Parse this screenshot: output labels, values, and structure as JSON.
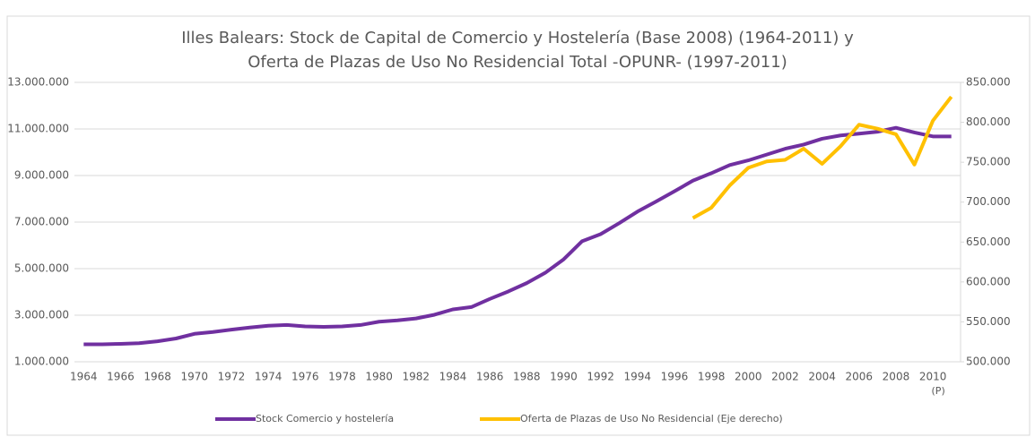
{
  "chart_data": {
    "type": "line",
    "title": [
      "Illes Balears: Stock de Capital de Comercio y Hostelería (Base 2008) (1964-2011) y",
      "Oferta de Plazas de Uso No Residencial Total -OPUNR- (1997-2011)"
    ],
    "categories": [
      "1964",
      null,
      "1966",
      null,
      "1968",
      null,
      "1970",
      null,
      "1972",
      null,
      "1974",
      null,
      "1976",
      null,
      "1978",
      null,
      "1980",
      null,
      "1982",
      null,
      "1984",
      null,
      "1986",
      null,
      "1988",
      null,
      "1990",
      null,
      "1992",
      null,
      "1994",
      null,
      "1996",
      null,
      "1998",
      null,
      "2000",
      null,
      "2002",
      null,
      "2004",
      null,
      "2006",
      null,
      "2008",
      null,
      "2010",
      null
    ],
    "category_note": "(P)",
    "series": [
      {
        "name": "Stock Comercio y hostelería",
        "color": "#7030a0",
        "values": [
          1750000,
          1750000,
          1770000,
          1800000,
          1880000,
          2000000,
          2200000,
          2280000,
          2380000,
          2470000,
          2550000,
          2580000,
          2520000,
          2500000,
          2520000,
          2580000,
          2720000,
          2780000,
          2860000,
          3020000,
          3250000,
          3350000,
          3700000,
          4020000,
          4380000,
          4820000,
          5400000,
          6180000,
          6480000,
          6950000,
          7450000,
          7880000,
          8320000,
          8780000,
          9100000,
          9450000,
          9650000,
          9900000,
          10150000,
          10330000,
          10580000,
          10720000,
          10800000,
          10880000,
          11050000,
          10850000,
          10680000,
          10680000
        ]
      },
      {
        "name": "Oferta de Plazas de Uso No Residencial (Eje derecho)",
        "color": "#ffc000",
        "axis": "y2",
        "values": [
          null,
          null,
          null,
          null,
          null,
          null,
          null,
          null,
          null,
          null,
          null,
          null,
          null,
          null,
          null,
          null,
          null,
          null,
          null,
          null,
          null,
          null,
          null,
          null,
          null,
          null,
          null,
          null,
          null,
          null,
          null,
          null,
          null,
          680000,
          693000,
          721000,
          743000,
          751000,
          753000,
          767000,
          748000,
          770000,
          797000,
          792000,
          785000,
          747000,
          802000,
          832000
        ]
      }
    ],
    "ylim": [
      1000000,
      13000000
    ],
    "yticks": [
      {
        "value": 1000000,
        "label": "1.000.000"
      },
      {
        "value": 3000000,
        "label": "3.000.000"
      },
      {
        "value": 5000000,
        "label": "5.000.000"
      },
      {
        "value": 7000000,
        "label": "7.000.000"
      },
      {
        "value": 9000000,
        "label": "9.000.000"
      },
      {
        "value": 11000000,
        "label": "11.000.000"
      },
      {
        "value": 13000000,
        "label": "13.000.000"
      }
    ],
    "y2lim": [
      500000,
      850000
    ],
    "y2ticks": [
      {
        "value": 500000,
        "label": "500.000"
      },
      {
        "value": 550000,
        "label": "550.000"
      },
      {
        "value": 600000,
        "label": "600.000"
      },
      {
        "value": 650000,
        "label": "650.000"
      },
      {
        "value": 700000,
        "label": "700.000"
      },
      {
        "value": 750000,
        "label": "750.000"
      },
      {
        "value": 800000,
        "label": "800.000"
      },
      {
        "value": 850000,
        "label": "850.000"
      }
    ],
    "grid": true,
    "legend": "bottom"
  }
}
